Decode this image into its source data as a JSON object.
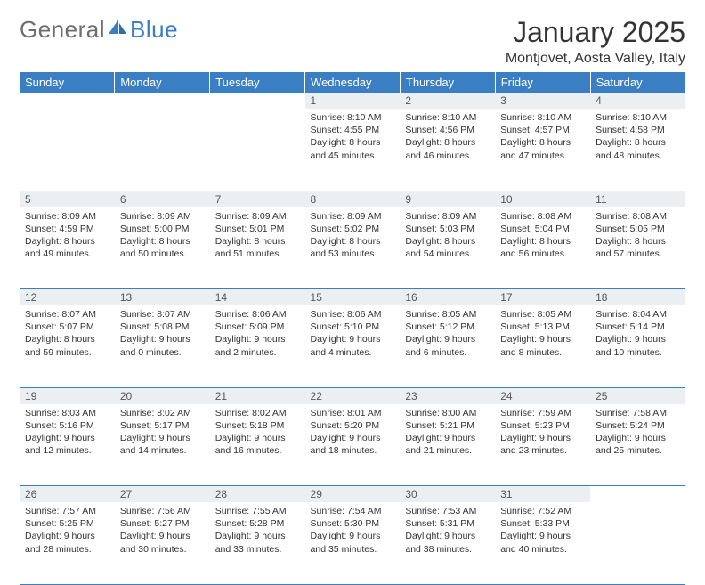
{
  "logo": {
    "textGeneral": "General",
    "textBlue": "Blue"
  },
  "title": "January 2025",
  "location": "Montjovet, Aosta Valley, Italy",
  "colors": {
    "headerBg": "#3a7fc4",
    "headerText": "#ffffff",
    "dayNumBg": "#eceff1",
    "borderColor": "#3a7fc4",
    "bodyText": "#333333",
    "logoGray": "#6e6e6e",
    "logoBlue": "#3a7fc4"
  },
  "weekdays": [
    "Sunday",
    "Monday",
    "Tuesday",
    "Wednesday",
    "Thursday",
    "Friday",
    "Saturday"
  ],
  "weeks": [
    [
      null,
      null,
      null,
      {
        "n": "1",
        "sr": "8:10 AM",
        "ss": "4:55 PM",
        "dl": "8 hours and 45 minutes."
      },
      {
        "n": "2",
        "sr": "8:10 AM",
        "ss": "4:56 PM",
        "dl": "8 hours and 46 minutes."
      },
      {
        "n": "3",
        "sr": "8:10 AM",
        "ss": "4:57 PM",
        "dl": "8 hours and 47 minutes."
      },
      {
        "n": "4",
        "sr": "8:10 AM",
        "ss": "4:58 PM",
        "dl": "8 hours and 48 minutes."
      }
    ],
    [
      {
        "n": "5",
        "sr": "8:09 AM",
        "ss": "4:59 PM",
        "dl": "8 hours and 49 minutes."
      },
      {
        "n": "6",
        "sr": "8:09 AM",
        "ss": "5:00 PM",
        "dl": "8 hours and 50 minutes."
      },
      {
        "n": "7",
        "sr": "8:09 AM",
        "ss": "5:01 PM",
        "dl": "8 hours and 51 minutes."
      },
      {
        "n": "8",
        "sr": "8:09 AM",
        "ss": "5:02 PM",
        "dl": "8 hours and 53 minutes."
      },
      {
        "n": "9",
        "sr": "8:09 AM",
        "ss": "5:03 PM",
        "dl": "8 hours and 54 minutes."
      },
      {
        "n": "10",
        "sr": "8:08 AM",
        "ss": "5:04 PM",
        "dl": "8 hours and 56 minutes."
      },
      {
        "n": "11",
        "sr": "8:08 AM",
        "ss": "5:05 PM",
        "dl": "8 hours and 57 minutes."
      }
    ],
    [
      {
        "n": "12",
        "sr": "8:07 AM",
        "ss": "5:07 PM",
        "dl": "8 hours and 59 minutes."
      },
      {
        "n": "13",
        "sr": "8:07 AM",
        "ss": "5:08 PM",
        "dl": "9 hours and 0 minutes."
      },
      {
        "n": "14",
        "sr": "8:06 AM",
        "ss": "5:09 PM",
        "dl": "9 hours and 2 minutes."
      },
      {
        "n": "15",
        "sr": "8:06 AM",
        "ss": "5:10 PM",
        "dl": "9 hours and 4 minutes."
      },
      {
        "n": "16",
        "sr": "8:05 AM",
        "ss": "5:12 PM",
        "dl": "9 hours and 6 minutes."
      },
      {
        "n": "17",
        "sr": "8:05 AM",
        "ss": "5:13 PM",
        "dl": "9 hours and 8 minutes."
      },
      {
        "n": "18",
        "sr": "8:04 AM",
        "ss": "5:14 PM",
        "dl": "9 hours and 10 minutes."
      }
    ],
    [
      {
        "n": "19",
        "sr": "8:03 AM",
        "ss": "5:16 PM",
        "dl": "9 hours and 12 minutes."
      },
      {
        "n": "20",
        "sr": "8:02 AM",
        "ss": "5:17 PM",
        "dl": "9 hours and 14 minutes."
      },
      {
        "n": "21",
        "sr": "8:02 AM",
        "ss": "5:18 PM",
        "dl": "9 hours and 16 minutes."
      },
      {
        "n": "22",
        "sr": "8:01 AM",
        "ss": "5:20 PM",
        "dl": "9 hours and 18 minutes."
      },
      {
        "n": "23",
        "sr": "8:00 AM",
        "ss": "5:21 PM",
        "dl": "9 hours and 21 minutes."
      },
      {
        "n": "24",
        "sr": "7:59 AM",
        "ss": "5:23 PM",
        "dl": "9 hours and 23 minutes."
      },
      {
        "n": "25",
        "sr": "7:58 AM",
        "ss": "5:24 PM",
        "dl": "9 hours and 25 minutes."
      }
    ],
    [
      {
        "n": "26",
        "sr": "7:57 AM",
        "ss": "5:25 PM",
        "dl": "9 hours and 28 minutes."
      },
      {
        "n": "27",
        "sr": "7:56 AM",
        "ss": "5:27 PM",
        "dl": "9 hours and 30 minutes."
      },
      {
        "n": "28",
        "sr": "7:55 AM",
        "ss": "5:28 PM",
        "dl": "9 hours and 33 minutes."
      },
      {
        "n": "29",
        "sr": "7:54 AM",
        "ss": "5:30 PM",
        "dl": "9 hours and 35 minutes."
      },
      {
        "n": "30",
        "sr": "7:53 AM",
        "ss": "5:31 PM",
        "dl": "9 hours and 38 minutes."
      },
      {
        "n": "31",
        "sr": "7:52 AM",
        "ss": "5:33 PM",
        "dl": "9 hours and 40 minutes."
      },
      null
    ]
  ],
  "labels": {
    "sunrise": "Sunrise: ",
    "sunset": "Sunset: ",
    "daylight": "Daylight: "
  }
}
